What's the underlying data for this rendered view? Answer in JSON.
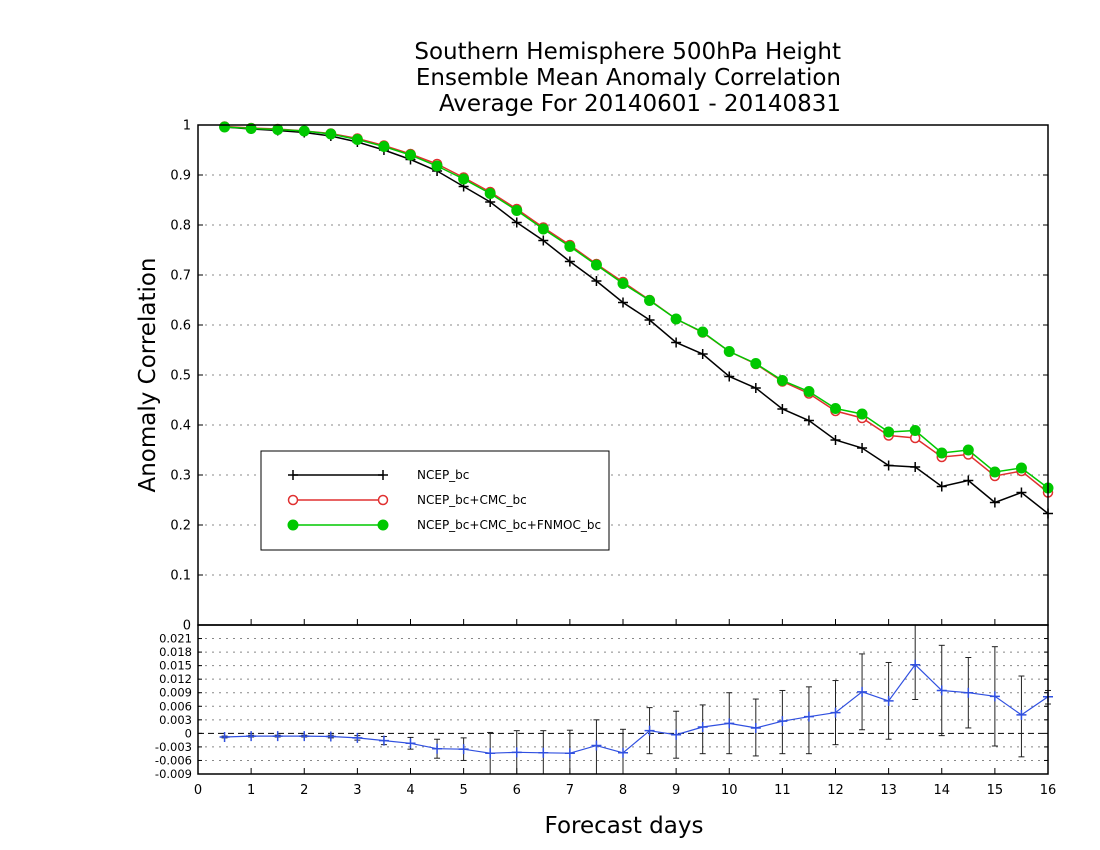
{
  "chart_data": [
    {
      "type": "line",
      "title": [
        "Southern Hemisphere 500hPa Height",
        "Ensemble Mean Anomaly Correlation",
        "Average For 20140601 - 20140831"
      ],
      "xlabel": "Forecast days",
      "ylabel": "Anomaly Correlation",
      "xlim": [
        0,
        16
      ],
      "ylim": [
        0,
        1
      ],
      "x_ticks": [
        "0",
        "1",
        "2",
        "3",
        "4",
        "5",
        "6",
        "7",
        "8",
        "9",
        "10",
        "11",
        "12",
        "13",
        "14",
        "15",
        "16"
      ],
      "y_ticks": [
        "0",
        "0.1",
        "0.2",
        "0.3",
        "0.4",
        "0.5",
        "0.6",
        "0.7",
        "0.8",
        "0.9",
        "1"
      ],
      "grid": "dotted horizontal",
      "legend_position": "left-middle",
      "x": [
        0.5,
        1,
        1.5,
        2,
        2.5,
        3,
        3.5,
        4,
        4.5,
        5,
        5.5,
        6,
        6.5,
        7,
        7.5,
        8,
        8.5,
        9,
        9.5,
        10,
        10.5,
        11,
        11.5,
        12,
        12.5,
        13,
        13.5,
        14,
        14.5,
        15,
        15.5,
        16
      ],
      "series": [
        {
          "name": "NCEP_bc",
          "color": "#000000",
          "marker": "plus",
          "values": [
            0.996,
            0.992,
            0.989,
            0.985,
            0.978,
            0.966,
            0.95,
            0.931,
            0.908,
            0.877,
            0.846,
            0.805,
            0.769,
            0.727,
            0.688,
            0.645,
            0.61,
            0.565,
            0.542,
            0.497,
            0.474,
            0.432,
            0.409,
            0.37,
            0.354,
            0.319,
            0.316,
            0.277,
            0.289,
            0.245,
            0.265,
            0.223
          ]
        },
        {
          "name": "NCEP_bc+CMC_bc",
          "color": "#e03030",
          "marker": "open-circle",
          "values": [
            0.997,
            0.994,
            0.992,
            0.988,
            0.983,
            0.973,
            0.959,
            0.942,
            0.922,
            0.895,
            0.866,
            0.832,
            0.795,
            0.76,
            0.722,
            0.686,
            0.65,
            0.612,
            0.585,
            0.547,
            0.522,
            0.487,
            0.463,
            0.428,
            0.414,
            0.379,
            0.374,
            0.336,
            0.341,
            0.298,
            0.308,
            0.265
          ]
        },
        {
          "name": "NCEP_bc+CMC_bc+FNMOC_bc",
          "color": "#00c800",
          "marker": "filled-circle",
          "values": [
            0.996,
            0.993,
            0.991,
            0.988,
            0.982,
            0.971,
            0.957,
            0.94,
            0.918,
            0.892,
            0.863,
            0.829,
            0.792,
            0.757,
            0.72,
            0.683,
            0.649,
            0.612,
            0.586,
            0.547,
            0.523,
            0.489,
            0.467,
            0.433,
            0.422,
            0.386,
            0.389,
            0.344,
            0.35,
            0.306,
            0.314,
            0.274
          ]
        }
      ]
    },
    {
      "type": "line",
      "xlim": [
        0,
        16
      ],
      "ylim": [
        -0.009,
        0.024
      ],
      "y_ticks": [
        "0.021",
        "0.018",
        "0.015",
        "0.012",
        "0.009",
        "0.006",
        "0.003",
        "0",
        "-0.003",
        "-0.006",
        "-0.009"
      ],
      "top_label": "0",
      "zero_line": "dashed",
      "grid": "dotted horizontal",
      "series": [
        {
          "name": "",
          "color": "#3050e0",
          "marker": "plus",
          "x": [
            0.5,
            1,
            1.5,
            2,
            2.5,
            3,
            3.5,
            4,
            4.5,
            5,
            5.5,
            6,
            6.5,
            7,
            7.5,
            8,
            8.5,
            9,
            9.5,
            10,
            10.5,
            11,
            11.5,
            12,
            12.5,
            13,
            13.5,
            14,
            14.5,
            15,
            15.5,
            16
          ],
          "values": [
            -0.0008,
            -0.0006,
            -0.0006,
            -0.0006,
            -0.0007,
            -0.001,
            -0.0016,
            -0.0022,
            -0.0034,
            -0.0035,
            -0.0044,
            -0.0042,
            -0.0043,
            -0.0044,
            -0.0027,
            -0.0043,
            0.0006,
            -0.0003,
            0.0014,
            0.0022,
            0.0012,
            0.0027,
            0.0037,
            0.0046,
            0.0092,
            0.0072,
            0.0152,
            0.0095,
            0.009,
            0.0082,
            0.0041,
            0.0081
          ],
          "error_low": [
            -0.001,
            -0.0008,
            -0.0008,
            -0.0008,
            -0.001,
            -0.0015,
            -0.0025,
            -0.0035,
            -0.0055,
            -0.006,
            -0.009,
            -0.009,
            -0.0092,
            -0.0095,
            -0.009,
            -0.0095,
            -0.0045,
            -0.0055,
            -0.0045,
            -0.0045,
            -0.005,
            -0.0045,
            -0.0045,
            -0.0025,
            0.0008,
            -0.0013,
            0.0075,
            -0.0005,
            0.0012,
            -0.0028,
            -0.0052,
            0.0065
          ],
          "error_high": [
            -0.0006,
            -0.0004,
            -0.0004,
            -0.0004,
            -0.0004,
            -0.0005,
            -0.0007,
            -0.0009,
            -0.0013,
            -0.001,
            0.0002,
            0.0006,
            0.0006,
            0.0007,
            0.003,
            0.0009,
            0.0057,
            0.0049,
            0.0063,
            0.009,
            0.0076,
            0.0095,
            0.0103,
            0.0117,
            0.0176,
            0.0157,
            0.0245,
            0.0195,
            0.0168,
            0.0192,
            0.0127,
            0.0095
          ]
        }
      ]
    }
  ]
}
